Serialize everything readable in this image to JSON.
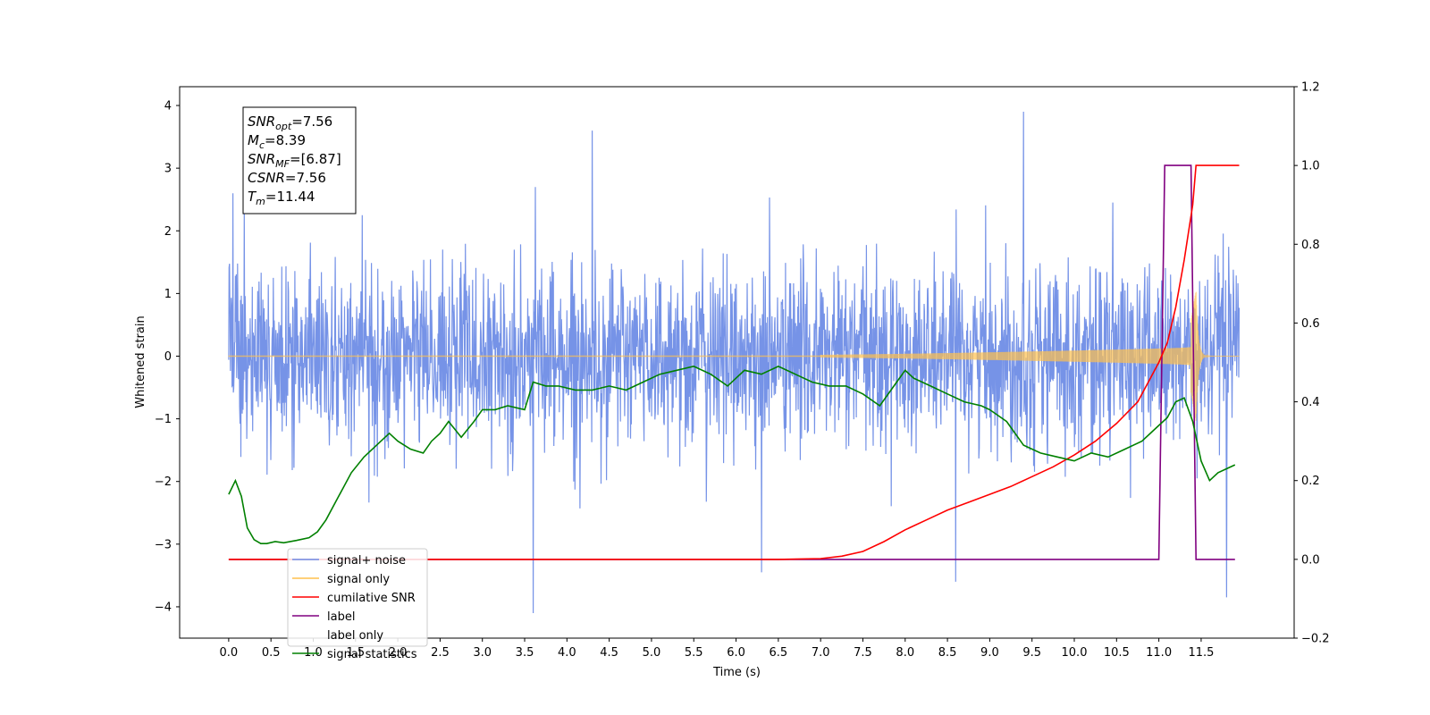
{
  "chart_data": {
    "type": "line",
    "xlabel": "Time (s)",
    "ylabel_left": "Whitened strain",
    "ylabel_right": "",
    "xlim": [
      -0.58,
      12.6
    ],
    "ylim_left": [
      -4.5,
      4.3
    ],
    "ylim_right": [
      -0.2,
      1.2
    ],
    "x_ticks": [
      0.0,
      0.5,
      1.0,
      1.5,
      2.0,
      2.5,
      3.0,
      3.5,
      4.0,
      4.5,
      5.0,
      5.5,
      6.0,
      6.5,
      7.0,
      7.5,
      8.0,
      8.5,
      9.0,
      9.5,
      10.0,
      10.5,
      11.0,
      11.5
    ],
    "x_tick_labels": [
      "0.0",
      "0.5",
      "1.0",
      "1.5",
      "2.0",
      "2.5",
      "3.0",
      "3.5",
      "4.0",
      "4.5",
      "5.0",
      "5.5",
      "6.0",
      "6.5",
      "7.0",
      "7.5",
      "8.0",
      "8.5",
      "9.0",
      "9.5",
      "10.0",
      "10.5",
      "11.0",
      "11.5"
    ],
    "y_ticks_left": [
      -4,
      -3,
      -2,
      -1,
      0,
      1,
      2,
      3,
      4
    ],
    "y_tick_labels_left": [
      "−4",
      "−3",
      "−2",
      "−1",
      "0",
      "1",
      "2",
      "3",
      "4"
    ],
    "y_ticks_right": [
      -0.2,
      0.0,
      0.2,
      0.4,
      0.6,
      0.8,
      1.0,
      1.2
    ],
    "y_tick_labels_right": [
      "−0.2",
      "0.0",
      "0.2",
      "0.4",
      "0.6",
      "0.8",
      "1.0",
      "1.2"
    ],
    "grid": false,
    "legend_position": "lower-left",
    "legend": [
      {
        "label": "signal+ noise",
        "color": "#6f8de6"
      },
      {
        "label": "signal only",
        "color": "#ffc04d"
      },
      {
        "label": "cumilative SNR",
        "color": "#ff0000"
      },
      {
        "label": "label",
        "color": "#800080"
      },
      {
        "label": "label only",
        "color": "#d0d0d0"
      },
      {
        "label": "signal statistics",
        "color": "#008000"
      }
    ],
    "annotation": [
      {
        "main": "SNR",
        "sub": "opt",
        "value": "=7.56"
      },
      {
        "main": "M",
        "sub": "c",
        "value": "=8.39"
      },
      {
        "main": "SNR",
        "sub": "MF",
        "value": "=[6.87]"
      },
      {
        "main": "CSNR",
        "sub": "",
        "value": "=7.56"
      },
      {
        "main": "T",
        "sub": "m",
        "value": "=11.44"
      }
    ],
    "series": [
      {
        "name": "signal+ noise",
        "axis": "left",
        "color": "#6f8de6",
        "description_values": {
          "x_start": 0.0,
          "x_end": 11.95,
          "baseline": 0.0,
          "typical_band": [
            -1.8,
            2.3
          ],
          "peaks": [
            [
              0.05,
              2.6
            ],
            [
              1.58,
              2.25
            ],
            [
              3.6,
              -4.1
            ],
            [
              4.3,
              3.6
            ],
            [
              6.3,
              -3.45
            ],
            [
              8.6,
              -3.6
            ],
            [
              9.4,
              3.9
            ],
            [
              11.45,
              -1.95
            ],
            [
              11.8,
              -3.85
            ]
          ]
        }
      },
      {
        "name": "signal only",
        "axis": "left",
        "color": "#ffc04d",
        "description_values": {
          "x_start": 0.0,
          "x_end": 11.95,
          "chirp_onset": 7.0,
          "merger_time": 11.44,
          "peak_amplitude": 1.05
        }
      },
      {
        "name": "cumilative SNR",
        "axis": "right",
        "x": [
          0.0,
          6.5,
          7.0,
          7.25,
          7.5,
          7.75,
          8.0,
          8.25,
          8.5,
          8.75,
          9.0,
          9.25,
          9.5,
          9.75,
          10.0,
          10.25,
          10.5,
          10.75,
          11.0,
          11.1,
          11.2,
          11.3,
          11.4,
          11.44,
          11.6,
          11.95
        ],
        "y": [
          0.0,
          0.0,
          0.002,
          0.008,
          0.02,
          0.045,
          0.075,
          0.1,
          0.125,
          0.145,
          0.165,
          0.185,
          0.21,
          0.235,
          0.265,
          0.3,
          0.345,
          0.4,
          0.5,
          0.55,
          0.64,
          0.76,
          0.9,
          1.0,
          1.0,
          1.0
        ]
      },
      {
        "name": "label",
        "axis": "right",
        "x": [
          0.0,
          11.0,
          11.07,
          11.38,
          11.44,
          11.9
        ],
        "y": [
          0.0,
          0.0,
          1.0,
          1.0,
          0.0,
          0.0
        ]
      },
      {
        "name": "signal statistics",
        "axis": "right",
        "x": [
          0.0,
          0.08,
          0.15,
          0.22,
          0.3,
          0.38,
          0.45,
          0.55,
          0.65,
          0.8,
          0.95,
          1.05,
          1.15,
          1.3,
          1.45,
          1.6,
          1.75,
          1.9,
          2.0,
          2.15,
          2.3,
          2.4,
          2.5,
          2.6,
          2.75,
          2.9,
          3.0,
          3.15,
          3.3,
          3.5,
          3.6,
          3.75,
          3.9,
          4.1,
          4.3,
          4.5,
          4.7,
          4.9,
          5.1,
          5.3,
          5.5,
          5.7,
          5.9,
          6.1,
          6.3,
          6.5,
          6.7,
          6.9,
          7.1,
          7.3,
          7.5,
          7.7,
          7.9,
          8.0,
          8.1,
          8.3,
          8.5,
          8.7,
          8.9,
          9.0,
          9.2,
          9.4,
          9.6,
          9.8,
          10.0,
          10.2,
          10.4,
          10.6,
          10.8,
          11.0,
          11.1,
          11.2,
          11.3,
          11.4,
          11.5,
          11.6,
          11.7,
          11.8,
          11.9
        ],
        "y": [
          0.165,
          0.2,
          0.16,
          0.08,
          0.05,
          0.04,
          0.04,
          0.045,
          0.042,
          0.048,
          0.055,
          0.07,
          0.1,
          0.16,
          0.22,
          0.26,
          0.29,
          0.32,
          0.3,
          0.28,
          0.27,
          0.3,
          0.32,
          0.35,
          0.31,
          0.35,
          0.38,
          0.38,
          0.39,
          0.38,
          0.45,
          0.44,
          0.44,
          0.43,
          0.43,
          0.44,
          0.43,
          0.45,
          0.47,
          0.48,
          0.49,
          0.47,
          0.44,
          0.48,
          0.47,
          0.49,
          0.47,
          0.45,
          0.44,
          0.44,
          0.42,
          0.39,
          0.45,
          0.48,
          0.46,
          0.44,
          0.42,
          0.4,
          0.39,
          0.38,
          0.35,
          0.29,
          0.27,
          0.26,
          0.25,
          0.27,
          0.26,
          0.28,
          0.3,
          0.34,
          0.36,
          0.4,
          0.41,
          0.35,
          0.25,
          0.2,
          0.22,
          0.23,
          0.24
        ]
      }
    ]
  }
}
